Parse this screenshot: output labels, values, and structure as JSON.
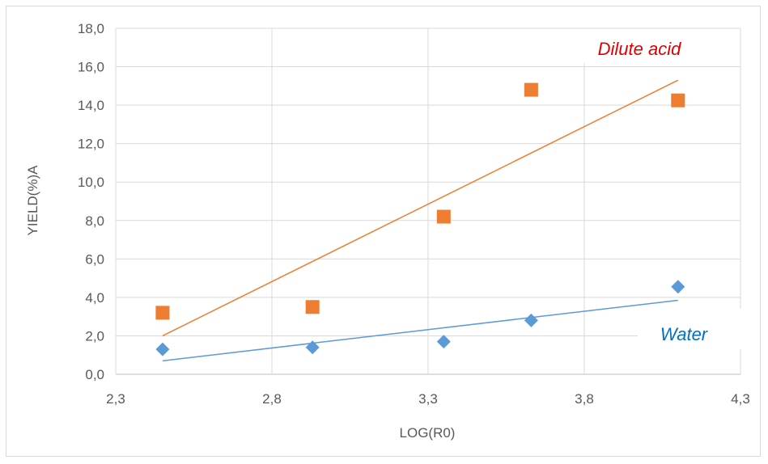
{
  "chart_data": {
    "type": "scatter",
    "xlabel": "LOG(R0)",
    "ylabel": "YIELD(%)A",
    "xlim": [
      2.3,
      4.3
    ],
    "ylim": [
      0,
      18
    ],
    "x_ticks": [
      "2,3",
      "2,8",
      "3,3",
      "3,8",
      "4,3"
    ],
    "y_ticks": [
      "0,0",
      "2,0",
      "4,0",
      "6,0",
      "8,0",
      "10,0",
      "12,0",
      "14,0",
      "16,0",
      "18,0"
    ],
    "grid": true,
    "series": [
      {
        "name": "Dilute acid",
        "color": "#ed7d31",
        "marker": "square",
        "x": [
          2.45,
          2.93,
          3.35,
          3.63,
          4.1
        ],
        "y": [
          3.2,
          3.5,
          8.2,
          14.8,
          14.25
        ],
        "trendline": {
          "x": [
            2.45,
            4.1
          ],
          "y": [
            2.0,
            15.3
          ]
        }
      },
      {
        "name": "Water",
        "color": "#5b9bd5",
        "marker": "diamond",
        "x": [
          2.45,
          2.93,
          3.35,
          3.63,
          4.1
        ],
        "y": [
          1.3,
          1.4,
          1.7,
          2.8,
          4.55
        ],
        "trendline": {
          "x": [
            2.45,
            4.1
          ],
          "y": [
            0.7,
            3.85
          ]
        }
      }
    ]
  }
}
